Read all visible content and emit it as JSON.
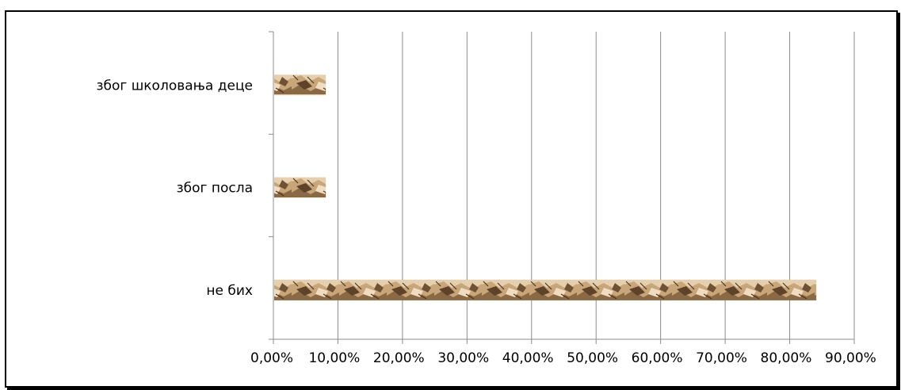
{
  "chart_data": {
    "type": "bar",
    "orientation": "horizontal",
    "categories": [
      "због школовања деце",
      "због посла",
      "не бих"
    ],
    "values": [
      8,
      8,
      84
    ],
    "x_ticks": [
      "0,00%",
      "10,00%",
      "20,00%",
      "30,00%",
      "40,00%",
      "50,00%",
      "60,00%",
      "70,00%",
      "80,00%",
      "90,00%"
    ],
    "xlim": [
      0,
      90
    ],
    "grid": true,
    "legend": "none",
    "title": "",
    "xlabel": "",
    "ylabel": "",
    "bar_color": "#b08a5e",
    "bar_texture": "crumpled-paper"
  }
}
